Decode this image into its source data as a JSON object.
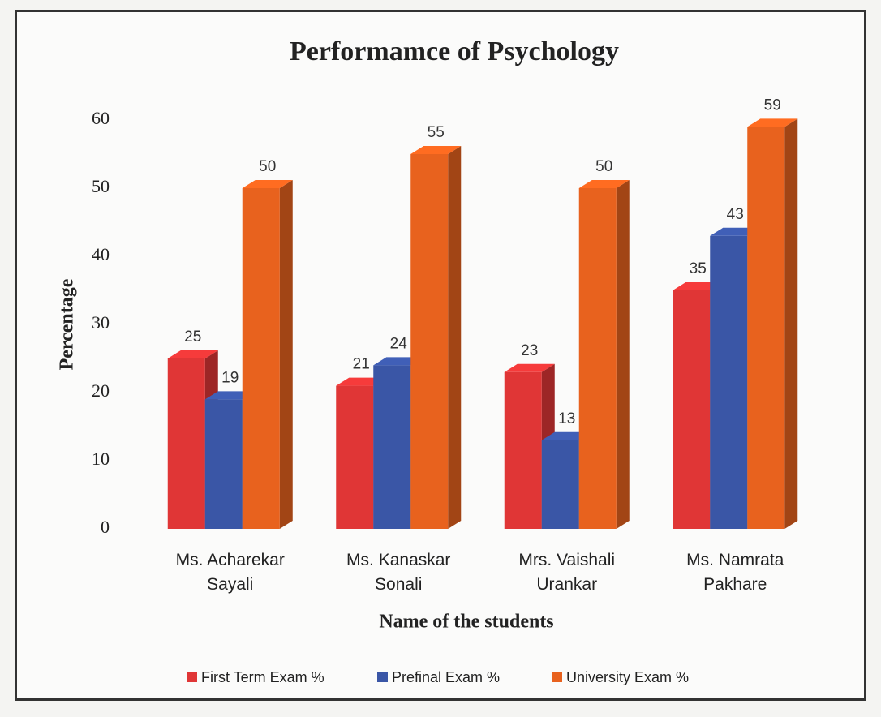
{
  "chart_data": {
    "type": "bar",
    "title": "Performamce of Psychology",
    "x_label": "Name of the students",
    "y_label": "Percentage",
    "categories": [
      "Ms. Acharekar Sayali",
      "Ms. Kanaskar Sonali",
      "Mrs. Vaishali Urankar",
      "Ms. Namrata Pakhare"
    ],
    "series": [
      {
        "name": "First Term Exam %",
        "color": "#e03636",
        "values": [
          25,
          21,
          23,
          35
        ]
      },
      {
        "name": "Prefinal Exam %",
        "color": "#3a56a6",
        "values": [
          19,
          24,
          13,
          43
        ]
      },
      {
        "name": "University Exam %",
        "color": "#e8621e",
        "values": [
          50,
          55,
          50,
          59
        ]
      }
    ],
    "ylim": [
      0,
      60
    ],
    "yticks": [
      0,
      10,
      20,
      30,
      40,
      50,
      60
    ],
    "grid": false,
    "legend": "bottom"
  }
}
